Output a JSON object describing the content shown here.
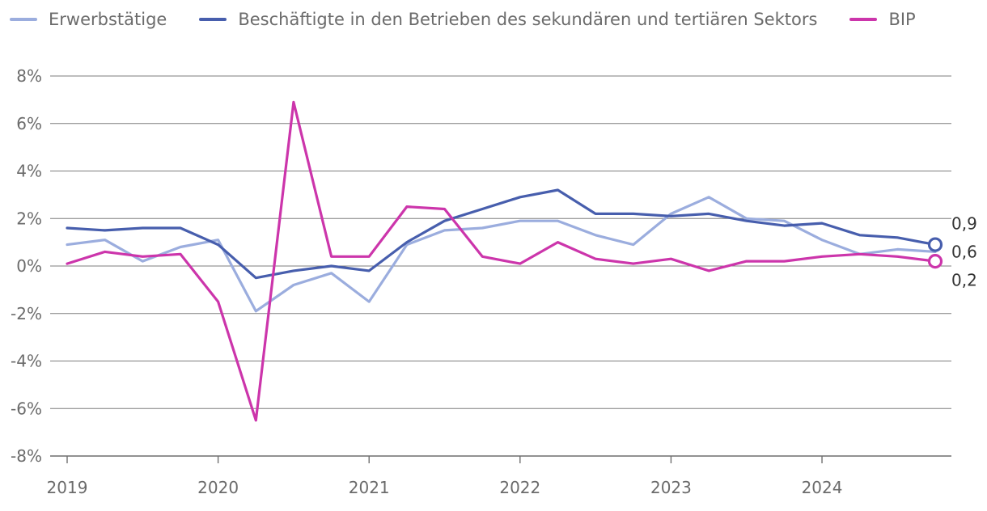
{
  "chart_data": {
    "type": "line",
    "title": "",
    "xlabel": "",
    "ylabel": "",
    "ylim": [
      -8,
      8
    ],
    "yticks": [
      8,
      6,
      4,
      2,
      0,
      -2,
      -4,
      -6,
      -8
    ],
    "ytick_labels": [
      "8%",
      "6%",
      "4%",
      "2%",
      "0%",
      "-2%",
      "-4%",
      "-6%",
      "-8%"
    ],
    "xlim": [
      2019,
      2024.75
    ],
    "xticks": [
      2019,
      2020,
      2021,
      2022,
      2023,
      2024
    ],
    "xtick_labels": [
      "2019",
      "2020",
      "2021",
      "2022",
      "2023",
      "2024"
    ],
    "x": [
      2019,
      2019.25,
      2019.5,
      2019.75,
      2020,
      2020.25,
      2020.5,
      2020.75,
      2021,
      2021.25,
      2021.5,
      2021.75,
      2022,
      2022.25,
      2022.5,
      2022.75,
      2023,
      2023.25,
      2023.5,
      2023.75,
      2024,
      2024.25,
      2024.5,
      2024.75
    ],
    "series": [
      {
        "name": "Erwerbstätige",
        "color": "#9badde",
        "values": [
          0.9,
          1.1,
          0.2,
          0.8,
          1.1,
          -1.9,
          -0.8,
          -0.3,
          -1.5,
          0.9,
          1.5,
          1.6,
          1.9,
          1.9,
          1.3,
          0.9,
          2.2,
          2.9,
          2.0,
          1.9,
          1.1,
          0.5,
          0.7,
          0.6
        ],
        "end_label": "0,6",
        "end_marker": false
      },
      {
        "name": "Beschäftigte in den Betrieben des sekundären und tertiären Sektors",
        "color": "#475ead",
        "values": [
          1.6,
          1.5,
          1.6,
          1.6,
          0.9,
          -0.5,
          -0.2,
          0.0,
          -0.2,
          1.0,
          1.9,
          2.4,
          2.9,
          3.2,
          2.2,
          2.2,
          2.1,
          2.2,
          1.9,
          1.7,
          1.8,
          1.3,
          1.2,
          0.9
        ],
        "end_label": "0,9",
        "end_marker": true
      },
      {
        "name": "BIP",
        "color": "#cc35ab",
        "values": [
          0.1,
          0.6,
          0.4,
          0.5,
          -1.5,
          -6.5,
          6.9,
          0.4,
          0.4,
          2.5,
          2.4,
          0.4,
          0.1,
          1.0,
          0.3,
          0.1,
          0.3,
          -0.2,
          0.2,
          0.2,
          0.4,
          0.5,
          0.4,
          0.2
        ],
        "end_label": "0,2",
        "end_marker": true
      }
    ],
    "legend": "top-left",
    "grid": true
  }
}
